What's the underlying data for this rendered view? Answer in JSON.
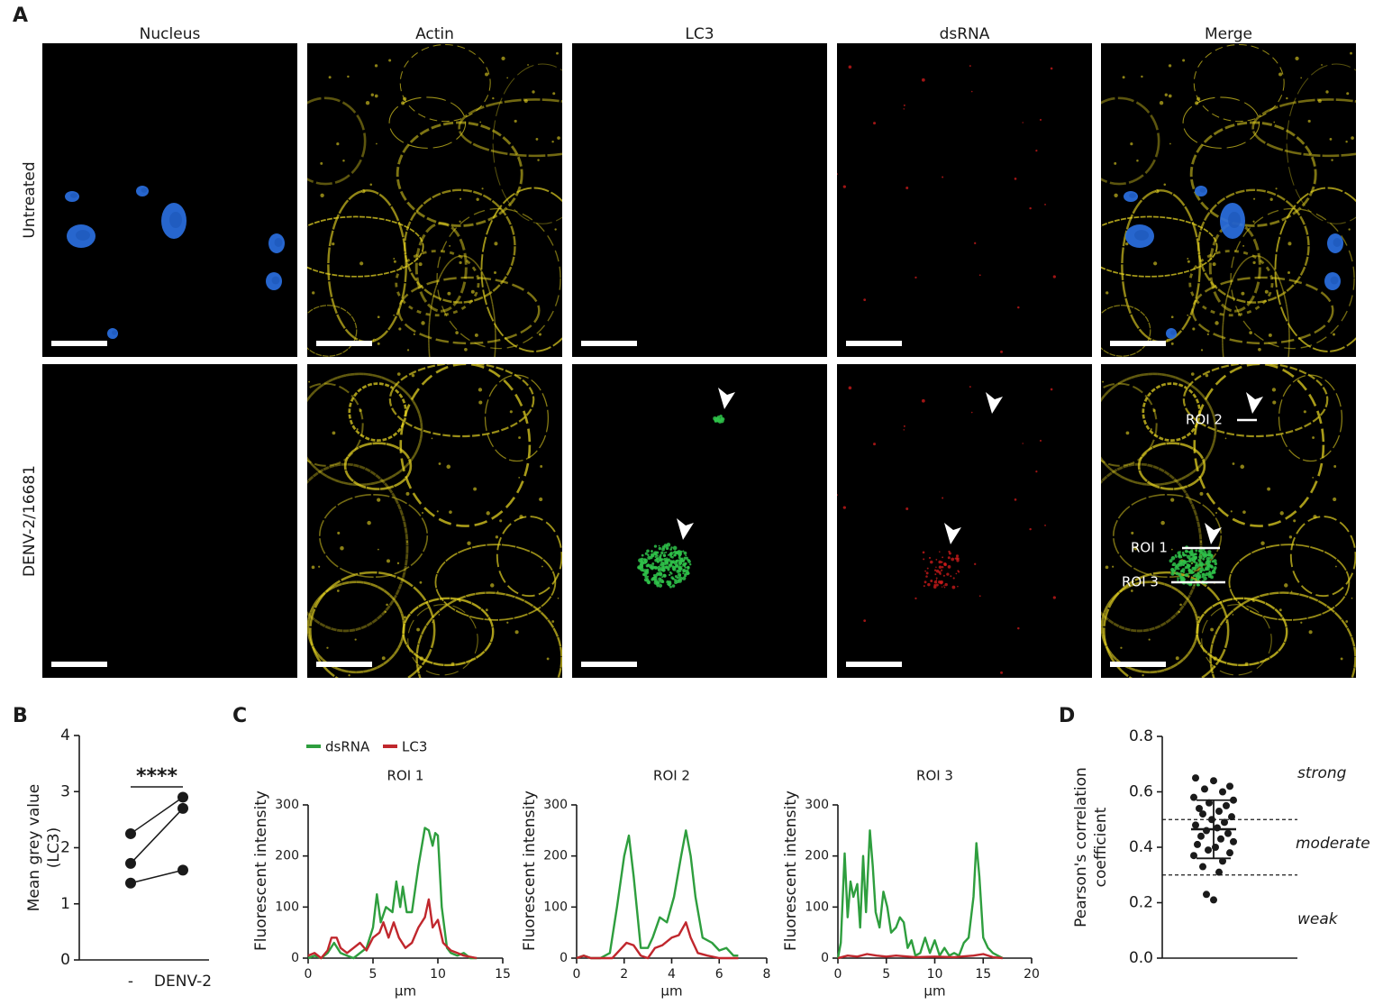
{
  "panel_labels": [
    "A",
    "B",
    "C",
    "D"
  ],
  "panel_a": {
    "columns": [
      "Nucleus",
      "Actin",
      "LC3",
      "dsRNA",
      "Merge"
    ],
    "column_colors": [
      "#2b3fbf",
      "#f0b81c",
      "#e0211b",
      "#1f9e3a",
      "#1a1a1a"
    ],
    "rows": [
      "Untreated",
      "DENV-2/16681"
    ],
    "roi_labels": [
      "ROI 2",
      "ROI 1",
      "ROI 3"
    ]
  },
  "chart_data": [
    {
      "type": "paired-dot",
      "categories": [
        "-",
        "DENV-2"
      ],
      "series": [
        {
          "color": "#1a1a1a",
          "values": [
            2.25,
            2.9
          ]
        },
        {
          "color": "#1a1a1a",
          "values": [
            1.72,
            2.7
          ]
        },
        {
          "color": "#1a1a1a",
          "values": [
            1.37,
            1.6
          ]
        }
      ],
      "ylabel": [
        "Mean grey value",
        "(LC3)"
      ],
      "ylim": [
        0,
        4
      ],
      "yticks": [
        0,
        1,
        2,
        3,
        4
      ],
      "annotation": "****"
    },
    {
      "type": "line",
      "title": "ROI 1",
      "xlabel": "µm",
      "ylabel": "Fluorescent intensity",
      "legend": "top-left",
      "xlim": [
        0,
        15
      ],
      "xticks": [
        0,
        5,
        10,
        15
      ],
      "ylim": [
        0,
        300
      ],
      "yticks": [
        0,
        100,
        200,
        300
      ],
      "series": [
        {
          "name": "dsRNA",
          "color": "#2e9e3e",
          "x": [
            0,
            0.5,
            1,
            1.5,
            2,
            2.5,
            3,
            3.5,
            4,
            4.5,
            5,
            5.3,
            5.6,
            6,
            6.5,
            6.8,
            7.1,
            7.3,
            7.6,
            8,
            8.5,
            9,
            9.3,
            9.6,
            9.8,
            10,
            10.3,
            10.7,
            11,
            11.5,
            12,
            12.5,
            13
          ],
          "values": [
            0,
            5,
            0,
            10,
            30,
            10,
            5,
            0,
            10,
            20,
            60,
            125,
            70,
            100,
            90,
            150,
            100,
            140,
            90,
            90,
            180,
            255,
            250,
            220,
            245,
            240,
            100,
            20,
            10,
            5,
            10,
            0,
            0
          ]
        },
        {
          "name": "LC3",
          "color": "#c0272d",
          "x": [
            0,
            0.5,
            1,
            1.5,
            1.8,
            2.2,
            2.5,
            3,
            3.5,
            4,
            4.5,
            5,
            5.5,
            5.8,
            6.2,
            6.6,
            7,
            7.5,
            8,
            8.5,
            9,
            9.3,
            9.6,
            10,
            10.4,
            11,
            11.5,
            12,
            13
          ],
          "values": [
            5,
            10,
            0,
            15,
            40,
            40,
            20,
            10,
            20,
            30,
            15,
            40,
            50,
            70,
            40,
            70,
            40,
            20,
            30,
            60,
            80,
            115,
            60,
            75,
            30,
            15,
            10,
            5,
            0
          ]
        }
      ]
    },
    {
      "type": "line",
      "title": "ROI 2",
      "xlabel": "µm",
      "ylabel": "Fluorescent intensity",
      "xlim": [
        0,
        8
      ],
      "xticks": [
        0,
        2,
        4,
        6,
        8
      ],
      "ylim": [
        0,
        300
      ],
      "yticks": [
        0,
        100,
        200,
        300
      ],
      "series": [
        {
          "color": "#2e9e3e",
          "x": [
            0,
            0.3,
            0.6,
            1,
            1.4,
            1.7,
            2,
            2.2,
            2.4,
            2.7,
            3,
            3.2,
            3.5,
            3.8,
            4.1,
            4.4,
            4.6,
            4.8,
            5,
            5.3,
            5.7,
            6,
            6.3,
            6.6,
            6.8
          ],
          "values": [
            0,
            5,
            0,
            0,
            10,
            100,
            200,
            240,
            160,
            20,
            20,
            40,
            80,
            70,
            120,
            200,
            250,
            200,
            120,
            40,
            30,
            15,
            20,
            5,
            5
          ]
        },
        {
          "color": "#c0272d",
          "x": [
            0,
            0.3,
            0.6,
            1.5,
            1.9,
            2.1,
            2.4,
            2.7,
            3,
            3.3,
            3.6,
            4,
            4.3,
            4.6,
            4.8,
            5.1,
            5.5,
            6,
            6.8
          ],
          "values": [
            0,
            5,
            0,
            0,
            20,
            30,
            25,
            5,
            0,
            20,
            25,
            40,
            45,
            70,
            40,
            10,
            5,
            0,
            0
          ]
        }
      ]
    },
    {
      "type": "line",
      "title": "ROI 3",
      "xlabel": "µm",
      "ylabel": "Fluorescent intensity",
      "xlim": [
        0,
        20
      ],
      "xticks": [
        0,
        5,
        10,
        15,
        20
      ],
      "ylim": [
        0,
        300
      ],
      "yticks": [
        0,
        100,
        200,
        300
      ],
      "series": [
        {
          "color": "#2e9e3e",
          "x": [
            0,
            0.3,
            0.7,
            1,
            1.3,
            1.6,
            2,
            2.3,
            2.6,
            2.9,
            3.3,
            3.6,
            3.9,
            4.3,
            4.7,
            5.1,
            5.5,
            6,
            6.4,
            6.8,
            7.2,
            7.6,
            8,
            8.5,
            9,
            9.5,
            10,
            10.5,
            11,
            11.5,
            12,
            12.5,
            13,
            13.5,
            14,
            14.3,
            14.6,
            15,
            15.5,
            16,
            16.5,
            17
          ],
          "values": [
            0,
            30,
            205,
            80,
            150,
            120,
            145,
            60,
            200,
            90,
            250,
            180,
            90,
            60,
            130,
            100,
            50,
            60,
            80,
            70,
            20,
            35,
            5,
            10,
            40,
            10,
            35,
            5,
            20,
            5,
            10,
            5,
            30,
            40,
            120,
            225,
            160,
            40,
            20,
            10,
            5,
            0
          ]
        },
        {
          "color": "#c0272d",
          "x": [
            0,
            1,
            2,
            3,
            4,
            5,
            6,
            8,
            10,
            12,
            14,
            15,
            16,
            17
          ],
          "values": [
            0,
            5,
            3,
            8,
            5,
            3,
            5,
            2,
            3,
            2,
            5,
            8,
            2,
            0
          ]
        }
      ]
    },
    {
      "type": "scatter",
      "color": "#1a1a1a",
      "values": [
        0.65,
        0.64,
        0.62,
        0.61,
        0.6,
        0.58,
        0.57,
        0.56,
        0.55,
        0.54,
        0.53,
        0.52,
        0.51,
        0.5,
        0.49,
        0.48,
        0.47,
        0.46,
        0.45,
        0.44,
        0.43,
        0.42,
        0.41,
        0.4,
        0.39,
        0.38,
        0.37,
        0.35,
        0.33,
        0.31,
        0.23,
        0.21
      ],
      "mean": 0.465,
      "sd": 0.105,
      "ylabel": [
        "Pearson's correlation",
        "coefficient"
      ],
      "ylim": [
        0,
        0.8
      ],
      "yticks": [
        {
          "value": 0,
          "label": "0.0"
        },
        0.2,
        0.4,
        0.6,
        0.8
      ],
      "reference_lines": [
        0.5,
        0.3
      ],
      "annotations": [
        "strong",
        "moderate",
        "weak"
      ]
    }
  ]
}
